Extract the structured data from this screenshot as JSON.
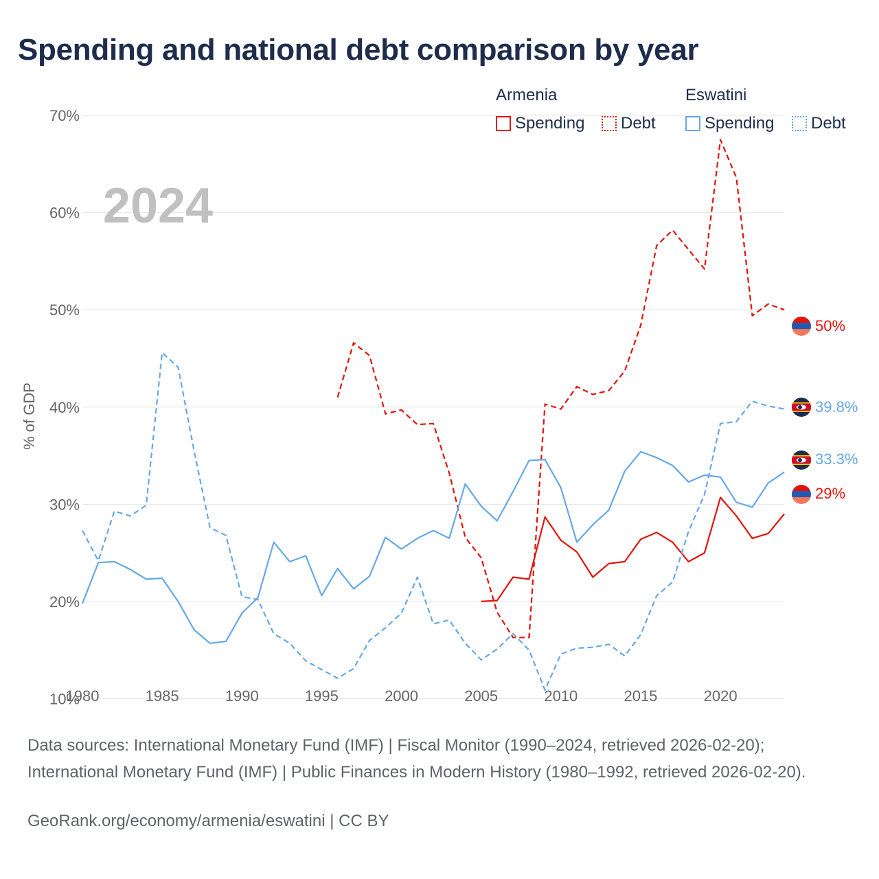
{
  "title": "Spending and national debt comparison by year",
  "legend": {
    "groups": [
      {
        "country": "Armenia",
        "spending_label": "Spending",
        "debt_label": "Debt",
        "color": "#e3120b"
      },
      {
        "country": "Eswatini",
        "spending_label": "Spending",
        "debt_label": "Debt",
        "color": "#64a8e8"
      }
    ]
  },
  "year_watermark": "2024",
  "sources": "Data sources: International Monetary Fund (IMF) | Fiscal Monitor (1990–2024, retrieved 2026-02-20); International Monetary Fund (IMF) | Public Finances in Modern History (1980–1992, retrieved 2026-02-20).",
  "credit": "GeoRank.org/economy/armenia/eswatini | CC BY",
  "chart_data": {
    "type": "line",
    "title": "Spending and national debt comparison by year",
    "xlabel": "",
    "ylabel": "% of GDP",
    "xlim": [
      1980,
      2024
    ],
    "ylim": [
      7,
      70
    ],
    "x_ticks": [
      1980,
      1985,
      1990,
      1995,
      2000,
      2005,
      2010,
      2015,
      2020
    ],
    "x_tick_labels": [
      "1980",
      "1985",
      "1990",
      "1995",
      "2000",
      "2005",
      "2010",
      "2015",
      "2020"
    ],
    "y_ticks": [
      10,
      20,
      30,
      40,
      50,
      60,
      70
    ],
    "y_tick_labels": [
      "10%",
      "20%",
      "30%",
      "40%",
      "50%",
      "60%",
      "70%"
    ],
    "grid": true,
    "series": [
      {
        "name": "Armenia Spending",
        "country": "Armenia",
        "color": "#e3120b",
        "dashed": false,
        "x": [
          2005,
          2006,
          2007,
          2008,
          2009,
          2010,
          2011,
          2012,
          2013,
          2014,
          2015,
          2016,
          2017,
          2018,
          2019,
          2020,
          2021,
          2022,
          2023,
          2024
        ],
        "values": [
          20.0,
          20.1,
          22.5,
          22.3,
          28.7,
          26.3,
          25.1,
          22.5,
          23.9,
          24.1,
          26.4,
          27.1,
          26.1,
          24.1,
          25.0,
          30.7,
          28.8,
          26.5,
          27.0,
          29.0
        ],
        "end_label": "29%"
      },
      {
        "name": "Armenia Debt",
        "country": "Armenia",
        "color": "#e3120b",
        "dashed": true,
        "x": [
          1996,
          1997,
          1998,
          1999,
          2000,
          2001,
          2002,
          2003,
          2004,
          2005,
          2006,
          2007,
          2008,
          2009,
          2010,
          2011,
          2012,
          2013,
          2014,
          2015,
          2016,
          2017,
          2018,
          2019,
          2020,
          2021,
          2022,
          2023,
          2024
        ],
        "values": [
          41.0,
          46.6,
          45.3,
          39.3,
          39.7,
          38.2,
          38.3,
          33.2,
          26.6,
          24.5,
          18.9,
          16.3,
          16.3,
          40.3,
          39.8,
          42.1,
          41.3,
          41.7,
          43.7,
          48.4,
          56.6,
          58.2,
          56.2,
          54.2,
          67.5,
          63.6,
          49.4,
          50.6,
          50.0
        ],
        "end_label": "50%"
      },
      {
        "name": "Eswatini Spending",
        "country": "Eswatini",
        "color": "#64a8e8",
        "dashed": false,
        "x": [
          1980,
          1981,
          1982,
          1983,
          1984,
          1985,
          1986,
          1987,
          1988,
          1989,
          1990,
          1991,
          1992,
          1993,
          1994,
          1995,
          1996,
          1997,
          1998,
          1999,
          2000,
          2001,
          2002,
          2003,
          2004,
          2005,
          2006,
          2007,
          2008,
          2009,
          2010,
          2011,
          2012,
          2013,
          2014,
          2015,
          2016,
          2017,
          2018,
          2019,
          2020,
          2021,
          2022,
          2023,
          2024
        ],
        "values": [
          19.8,
          24.0,
          24.1,
          23.3,
          22.3,
          22.4,
          20.0,
          17.1,
          15.7,
          15.9,
          18.8,
          20.4,
          26.1,
          24.1,
          24.7,
          20.6,
          23.4,
          21.3,
          22.6,
          26.6,
          25.4,
          26.5,
          27.3,
          26.5,
          32.1,
          29.8,
          28.3,
          31.3,
          34.5,
          34.6,
          31.7,
          26.1,
          27.9,
          29.4,
          33.4,
          35.4,
          34.8,
          34.0,
          32.3,
          33.0,
          32.8,
          30.2,
          29.7,
          32.2,
          33.3
        ],
        "end_label": "33.3%"
      },
      {
        "name": "Eswatini Debt",
        "country": "Eswatini",
        "color": "#64a8e8",
        "dashed": true,
        "x": [
          1980,
          1981,
          1982,
          1983,
          1984,
          1985,
          1986,
          1987,
          1988,
          1989,
          1990,
          1991,
          1992,
          1993,
          1994,
          1995,
          1996,
          1997,
          1998,
          1999,
          2000,
          2001,
          2002,
          2003,
          2004,
          2005,
          2006,
          2007,
          2008,
          2009,
          2010,
          2011,
          2012,
          2013,
          2014,
          2015,
          2016,
          2017,
          2018,
          2019,
          2020,
          2021,
          2022,
          2023,
          2024
        ],
        "values": [
          27.3,
          24.2,
          29.3,
          28.8,
          29.9,
          45.6,
          44.1,
          35.5,
          27.6,
          26.8,
          20.5,
          20.2,
          16.7,
          15.7,
          13.9,
          13.0,
          12.1,
          13.1,
          16.0,
          17.3,
          18.8,
          22.5,
          17.7,
          18.1,
          15.7,
          14.0,
          15.1,
          16.7,
          15.0,
          10.9,
          14.6,
          15.2,
          15.3,
          15.6,
          14.4,
          16.6,
          20.6,
          22.0,
          27.2,
          31.0,
          38.3,
          38.5,
          40.6,
          40.1,
          39.8
        ],
        "end_label": "39.8%"
      }
    ]
  }
}
